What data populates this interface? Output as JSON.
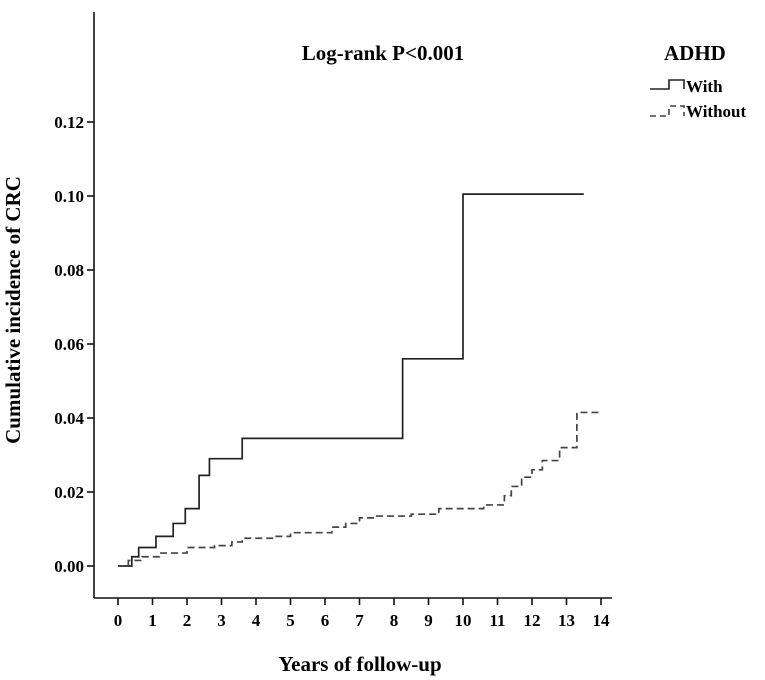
{
  "chart_data": {
    "type": "line",
    "subtype": "step-cumulative-incidence",
    "title": "",
    "annotation": "Log-rank P<0.001",
    "xlabel": "Years of follow-up",
    "ylabel": "Cumulative incidence of CRC",
    "xlim": [
      0,
      14
    ],
    "ylim": [
      0,
      0.12
    ],
    "x_ticks": [
      "0",
      "1",
      "2",
      "3",
      "4",
      "5",
      "6",
      "7",
      "8",
      "9",
      "10",
      "11",
      "12",
      "13",
      "14"
    ],
    "y_ticks": [
      "0.00",
      "0.02",
      "0.04",
      "0.06",
      "0.08",
      "0.10",
      "0.12"
    ],
    "grid": false,
    "legend": {
      "title": "ADHD",
      "placement": "top-right",
      "entries": [
        "With",
        "Without"
      ]
    },
    "series": [
      {
        "name": "With",
        "style": "solid",
        "color": "#222222",
        "x": [
          0,
          0.4,
          0.6,
          1.1,
          1.6,
          1.95,
          2.35,
          2.5,
          2.65,
          3.6,
          8.25,
          10.0,
          13.5
        ],
        "y": [
          0.0,
          0.0025,
          0.005,
          0.008,
          0.0115,
          0.0155,
          0.0245,
          0.0245,
          0.029,
          0.0345,
          0.056,
          0.1005,
          0.1005
        ]
      },
      {
        "name": "Without",
        "style": "dashed",
        "color": "#444444",
        "x": [
          0,
          0.3,
          0.7,
          1.2,
          2.0,
          2.8,
          3.3,
          3.6,
          4.5,
          5.0,
          6.2,
          6.6,
          7.0,
          7.5,
          8.5,
          9.3,
          10.6,
          11.2,
          11.4,
          11.7,
          12.0,
          12.3,
          12.8,
          13.3,
          14.0
        ],
        "y": [
          0.0,
          0.0015,
          0.0025,
          0.0035,
          0.005,
          0.0055,
          0.0065,
          0.0075,
          0.008,
          0.009,
          0.0105,
          0.0115,
          0.013,
          0.0135,
          0.014,
          0.0155,
          0.0165,
          0.019,
          0.0215,
          0.024,
          0.026,
          0.0285,
          0.032,
          0.0415,
          0.0415
        ]
      }
    ]
  }
}
